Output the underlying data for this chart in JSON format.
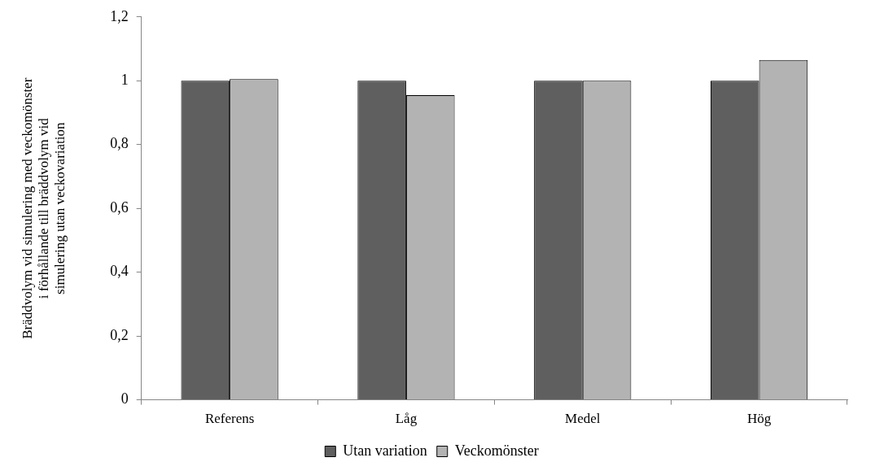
{
  "chart_data": {
    "type": "bar",
    "ylabel": "Bräddvolym vid simulering med veckomönster i förhållande till bräddvolym vid simulering utan veckovariation",
    "categories": [
      "Referens",
      "Låg",
      "Medel",
      "Hög"
    ],
    "series": [
      {
        "name": "Utan variation",
        "color": "#5f5f5f",
        "values": [
          1,
          1,
          1,
          1
        ]
      },
      {
        "name": "Veckomönster",
        "color": "#b3b3b3",
        "values": [
          1.005,
          0.955,
          1.0,
          1.065
        ]
      }
    ],
    "ylim": [
      0,
      1.2
    ],
    "yticks": [
      0,
      {
        "value": 0.2,
        "label": "0,2"
      },
      {
        "value": 0.4,
        "label": "0,4"
      },
      {
        "value": 0.6,
        "label": "0,6"
      },
      {
        "value": 0.8,
        "label": "0,8"
      },
      1,
      {
        "value": 1.2,
        "label": "1,2"
      }
    ],
    "grid": false,
    "legend": "bottom"
  }
}
